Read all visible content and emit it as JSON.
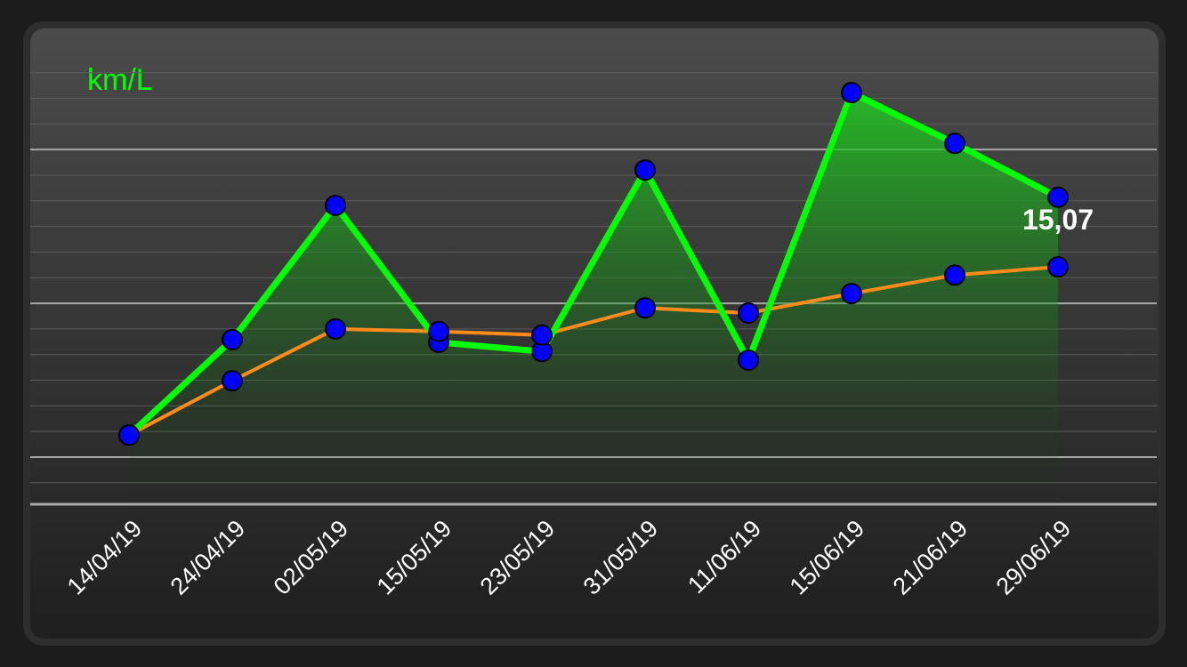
{
  "chart_data": {
    "type": "line",
    "title": "km/L",
    "categories": [
      "14/04/19",
      "24/04/19",
      "02/05/19",
      "15/05/19",
      "23/05/19",
      "31/05/19",
      "11/06/19",
      "15/06/19",
      "21/06/19",
      "29/06/19"
    ],
    "series": [
      {
        "color": "#00ff00",
        "area": true,
        "values": [
          10.43,
          12.29,
          14.91,
          12.24,
          12.06,
          15.6,
          11.89,
          17.11,
          16.12,
          15.07
        ],
        "value_labels": [
          null,
          null,
          null,
          null,
          null,
          null,
          null,
          null,
          null,
          "15,07"
        ]
      },
      {
        "color": "#ff8c1a",
        "values": [
          10.43,
          11.49,
          12.5,
          12.45,
          12.38,
          12.91,
          12.81,
          13.19,
          13.55,
          13.71
        ]
      }
    ],
    "marker_color": "#0000ff",
    "ylim": [
      9.08,
      18.05
    ],
    "yticks": [
      10,
      13,
      16
    ],
    "minor_yticks": [
      9.5,
      10.5,
      11,
      11.5,
      12,
      12.5,
      13.5,
      14,
      14.5,
      15,
      15.5,
      16.5,
      17,
      17.5
    ],
    "grid": true
  }
}
